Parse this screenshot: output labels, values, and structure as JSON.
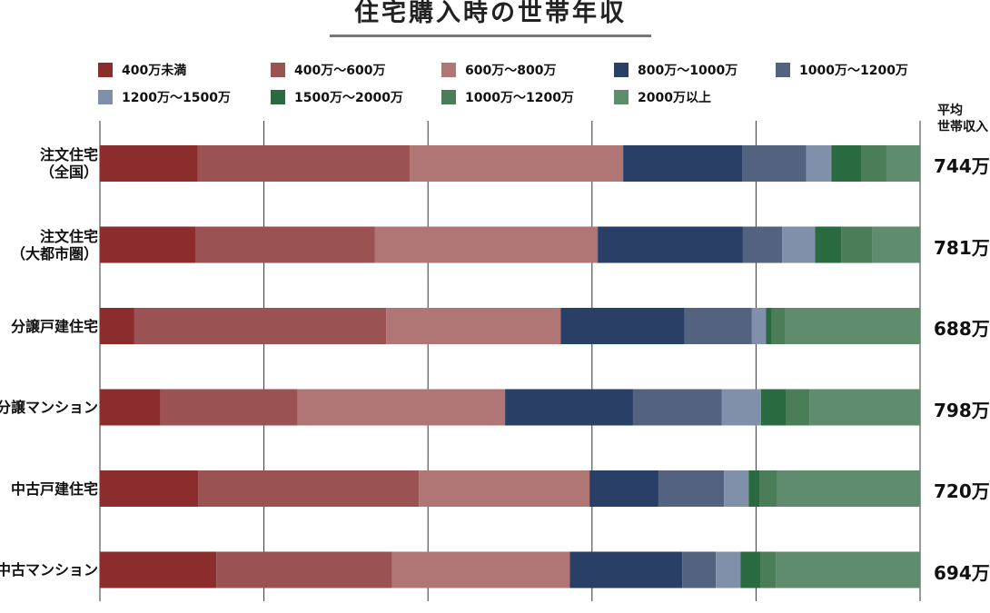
{
  "chart_data": {
    "type": "bar",
    "orientation": "horizontal",
    "stacked": true,
    "normalized": true,
    "title": "住宅購入時の世帯年収",
    "xlim": [
      0,
      100
    ],
    "grid": true,
    "legend_position": "top",
    "categories": [
      {
        "lines": [
          "注文住宅",
          "（全国）"
        ]
      },
      {
        "lines": [
          "注文住宅",
          "（大都市圏）"
        ]
      },
      {
        "lines": [
          "分譲戸建住宅"
        ]
      },
      {
        "lines": [
          "分譲マンション"
        ]
      },
      {
        "lines": [
          "中古戸建住宅"
        ]
      },
      {
        "lines": [
          "中古マンション"
        ]
      }
    ],
    "series": [
      {
        "name": "400万未満",
        "color": "#8b2d2d",
        "values": [
          11.9,
          11.7,
          4.2,
          7.4,
          12.0,
          14.2
        ]
      },
      {
        "name": "400万～600万",
        "color": "#9a5252",
        "values": [
          25.9,
          21.8,
          30.7,
          16.7,
          26.9,
          21.4
        ]
      },
      {
        "name": "600万～800万",
        "color": "#b07676",
        "values": [
          26.0,
          27.2,
          21.3,
          25.3,
          20.8,
          21.7
        ]
      },
      {
        "name": "800万～1000万",
        "color": "#2a3f66",
        "values": [
          14.5,
          17.7,
          15.1,
          15.6,
          8.4,
          13.7
        ]
      },
      {
        "name": "1000万～1200万",
        "color": "#53637f",
        "values": [
          7.8,
          4.8,
          8.2,
          10.8,
          8.0,
          4.1
        ]
      },
      {
        "name": "1200万～1500万",
        "color": "#8190aa",
        "values": [
          3.1,
          4.0,
          1.7,
          4.8,
          3.0,
          3.0
        ]
      },
      {
        "name": "1500万～2000万",
        "color": "#2a6a40",
        "values": [
          3.6,
          3.2,
          0.7,
          3.1,
          1.3,
          2.5
        ]
      },
      {
        "name": "1000万～1200万",
        "color": "#4a7d58",
        "values": [
          3.1,
          3.8,
          1.6,
          2.8,
          2.2,
          1.8
        ]
      },
      {
        "name": "2000万以上",
        "color": "#5e8c6c",
        "values": [
          4.1,
          5.8,
          16.5,
          13.5,
          17.4,
          17.6
        ]
      }
    ],
    "average": {
      "header": [
        "平均",
        "世帯収入"
      ],
      "labels": [
        "744万",
        "781万",
        "688万",
        "798万",
        "720万",
        "694万"
      ]
    }
  }
}
